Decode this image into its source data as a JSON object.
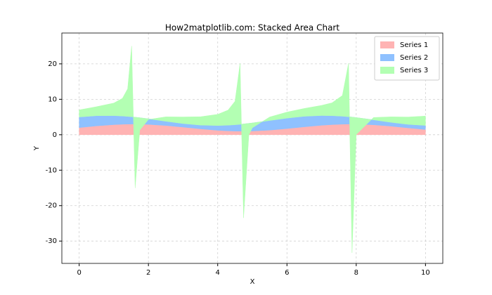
{
  "chart_data": {
    "type": "stacked_area",
    "title": "How2matplotlib.com: Stacked Area Chart",
    "xlabel": "X",
    "ylabel": "Y",
    "x": [
      0,
      0.5,
      1,
      1.25,
      1.4,
      1.515,
      1.616,
      1.75,
      2,
      2.5,
      3,
      3.5,
      4,
      4.3,
      4.5,
      4.646,
      4.747,
      4.9,
      5,
      5.5,
      6,
      6.5,
      7,
      7.3,
      7.6,
      7.778,
      7.879,
      8,
      8.5,
      9,
      9.5,
      10
    ],
    "series": [
      {
        "name": "Series 1",
        "color": "#ffb3b3",
        "values": [
          2,
          2.48,
          2.84,
          2.95,
          2.99,
          3.0,
          3.0,
          2.98,
          2.91,
          2.6,
          2.14,
          1.65,
          1.24,
          1.08,
          1.02,
          1.0,
          1.0,
          1.02,
          1.04,
          1.29,
          1.72,
          2.22,
          2.66,
          2.85,
          2.97,
          3.0,
          3.0,
          2.99,
          2.8,
          2.41,
          1.92,
          1.46
        ]
      },
      {
        "name": "Series 2",
        "color": "#8fc1ff",
        "values": [
          3,
          2.88,
          2.54,
          2.32,
          2.17,
          2.06,
          1.95,
          1.82,
          1.58,
          1.2,
          1.01,
          1.06,
          1.35,
          1.6,
          1.79,
          1.93,
          2.04,
          2.19,
          2.28,
          2.71,
          2.96,
          2.98,
          2.75,
          2.52,
          2.25,
          2.08,
          1.98,
          1.85,
          1.4,
          1.09,
          1.0,
          1.16
        ]
      },
      {
        "name": "Series 3",
        "color": "#b3ffb3",
        "values": [
          2,
          2.55,
          3.56,
          5.01,
          7.8,
          19.97,
          -20.0,
          -3.52,
          -0.19,
          1.25,
          1.86,
          2.37,
          3.16,
          4.28,
          6.64,
          17.15,
          -26.5,
          -3.27,
          -1.38,
          1.0,
          1.71,
          2.22,
          2.87,
          3.63,
          5.85,
          15.08,
          -38.3,
          -4.8,
          0.67,
          1.55,
          2.08,
          2.65
        ]
      }
    ],
    "xlim": [
      -0.5,
      10.5
    ],
    "xticks": [
      0,
      2,
      4,
      6,
      8,
      10
    ],
    "ylim": [
      -36.3,
      28.7
    ],
    "yticks": [
      -30,
      -20,
      -10,
      0,
      10,
      20
    ],
    "grid": true,
    "legend": "upper right"
  }
}
